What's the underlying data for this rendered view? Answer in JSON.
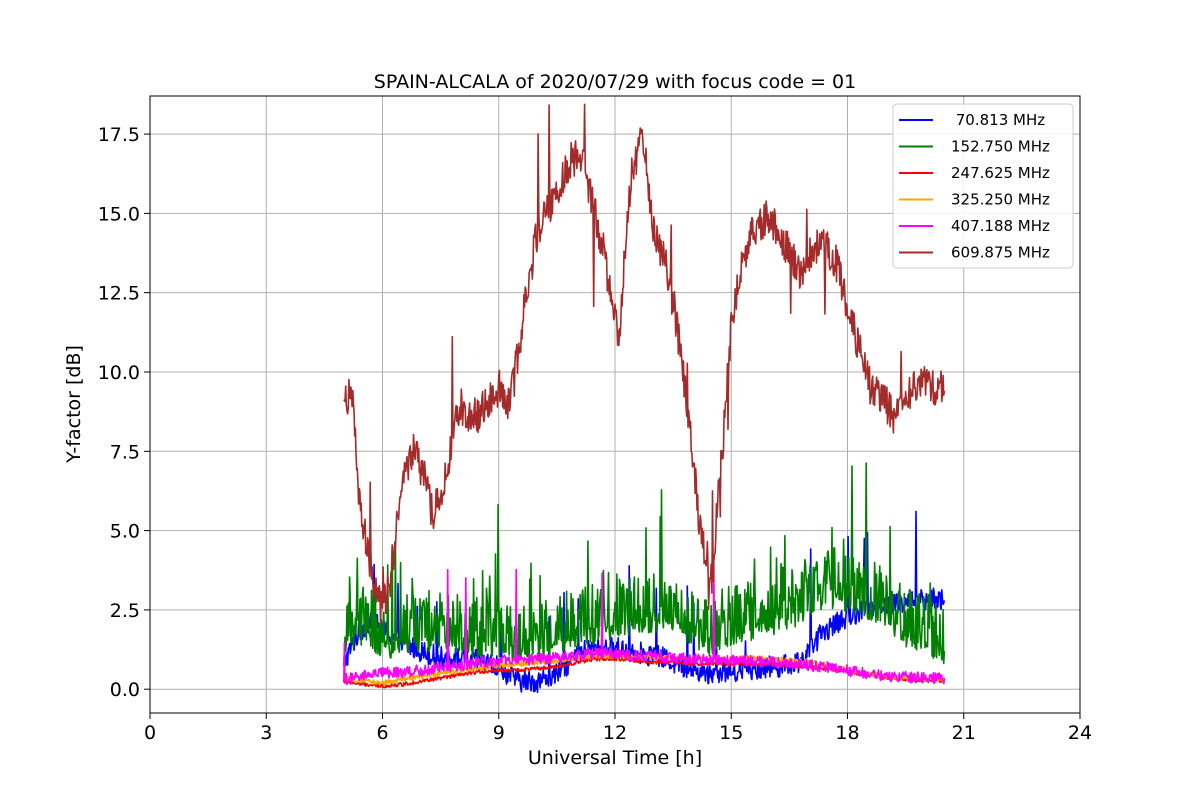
{
  "chart_data": {
    "type": "line",
    "title": "SPAIN-ALCALA of 2020/07/29 with focus code = 01",
    "xlabel": "Universal Time [h]",
    "ylabel": "Y-factor [dB]",
    "xlim": [
      0,
      24
    ],
    "ylim": [
      -0.75,
      18.7
    ],
    "xticks": [
      0,
      3,
      6,
      9,
      12,
      15,
      18,
      21,
      24
    ],
    "xtick_labels": [
      "0",
      "3",
      "6",
      "9",
      "12",
      "15",
      "18",
      "21",
      "24"
    ],
    "yticks": [
      0,
      2.5,
      5,
      7.5,
      10,
      12.5,
      15,
      17.5
    ],
    "ytick_labels": [
      "0.0",
      "2.5",
      "5.0",
      "7.5",
      "10.0",
      "12.5",
      "15.0",
      "17.5"
    ],
    "grid": true,
    "legend_position": "top-right",
    "series": [
      {
        "name": " 70.813 MHz",
        "color": "#0000ff",
        "x": [
          5.0,
          5.3,
          5.6,
          5.9,
          6.2,
          6.6,
          7.0,
          7.5,
          8.0,
          8.5,
          9.0,
          9.3,
          9.6,
          10.0,
          10.4,
          10.8,
          11.2,
          11.6,
          12.0,
          12.4,
          12.8,
          13.2,
          13.6,
          14.0,
          14.4,
          14.8,
          15.2,
          15.6,
          16.0,
          16.4,
          16.8,
          17.0,
          17.3,
          17.6,
          18.0,
          18.4,
          18.8,
          19.2,
          19.6,
          20.0,
          20.3,
          20.5
        ],
        "y": [
          0.8,
          1.6,
          2.1,
          2.0,
          1.7,
          1.4,
          1.2,
          1.0,
          0.95,
          0.9,
          0.7,
          0.4,
          0.25,
          0.25,
          0.4,
          0.8,
          1.2,
          1.3,
          1.3,
          1.25,
          1.1,
          1.0,
          0.8,
          0.6,
          0.5,
          0.55,
          0.6,
          0.65,
          0.7,
          0.75,
          0.9,
          1.2,
          1.7,
          2.0,
          2.3,
          2.5,
          2.6,
          2.7,
          2.8,
          2.8,
          2.9,
          2.8
        ]
      },
      {
        "name": "152.750 MHz",
        "color": "#008000",
        "x": [
          5.0,
          5.3,
          5.6,
          5.9,
          6.2,
          6.6,
          7.0,
          7.5,
          8.0,
          8.5,
          9.0,
          9.3,
          9.6,
          10.0,
          10.4,
          10.8,
          11.2,
          11.6,
          12.0,
          12.4,
          12.8,
          13.2,
          13.6,
          14.0,
          14.4,
          14.8,
          15.2,
          15.6,
          16.0,
          16.4,
          16.8,
          17.0,
          17.3,
          17.6,
          18.0,
          18.4,
          18.8,
          19.2,
          19.6,
          20.0,
          20.3,
          20.5
        ],
        "y": [
          1.2,
          1.8,
          2.0,
          1.6,
          1.5,
          1.6,
          1.7,
          1.8,
          1.6,
          1.5,
          1.6,
          1.4,
          1.3,
          1.4,
          1.6,
          1.8,
          1.9,
          2.0,
          2.1,
          2.2,
          2.3,
          2.4,
          2.2,
          1.9,
          1.6,
          1.8,
          2.0,
          2.1,
          2.2,
          2.4,
          2.6,
          2.8,
          3.0,
          3.1,
          3.0,
          2.8,
          2.6,
          2.2,
          1.8,
          1.5,
          1.3,
          1.2
        ]
      },
      {
        "name": "247.625 MHz",
        "color": "#ff0000",
        "x": [
          5.0,
          5.5,
          6.0,
          6.5,
          7.0,
          7.5,
          8.0,
          8.5,
          9.0,
          9.5,
          10.0,
          10.5,
          11.0,
          11.5,
          12.0,
          12.5,
          13.0,
          13.5,
          14.0,
          14.5,
          15.0,
          15.5,
          16.0,
          16.5,
          17.0,
          17.5,
          18.0,
          18.5,
          19.0,
          19.5,
          20.0,
          20.5
        ],
        "y": [
          0.25,
          0.15,
          0.1,
          0.15,
          0.25,
          0.35,
          0.45,
          0.55,
          0.6,
          0.6,
          0.65,
          0.7,
          0.85,
          0.95,
          0.95,
          0.9,
          0.85,
          0.85,
          0.8,
          0.8,
          0.8,
          0.8,
          0.8,
          0.75,
          0.7,
          0.65,
          0.55,
          0.45,
          0.38,
          0.32,
          0.28,
          0.25
        ]
      },
      {
        "name": "325.250 MHz",
        "color": "#ffa500",
        "x": [
          5.0,
          5.5,
          6.0,
          6.5,
          7.0,
          7.5,
          8.0,
          8.5,
          9.0,
          9.5,
          10.0,
          10.5,
          11.0,
          11.5,
          12.0,
          12.5,
          13.0,
          13.5,
          14.0,
          14.5,
          15.0,
          15.5,
          16.0,
          16.5,
          17.0,
          17.5,
          18.0,
          18.5,
          19.0,
          19.5,
          20.0,
          20.5
        ],
        "y": [
          0.35,
          0.25,
          0.2,
          0.3,
          0.4,
          0.5,
          0.6,
          0.65,
          0.75,
          0.8,
          0.85,
          0.9,
          1.0,
          1.05,
          1.05,
          1.0,
          1.0,
          1.0,
          0.95,
          0.95,
          0.95,
          1.0,
          0.95,
          0.9,
          0.85,
          0.75,
          0.6,
          0.5,
          0.4,
          0.35,
          0.32,
          0.3
        ]
      },
      {
        "name": "407.188 MHz",
        "color": "#ff00ff",
        "x": [
          5.0,
          5.5,
          6.0,
          6.5,
          7.0,
          7.5,
          8.0,
          8.5,
          9.0,
          9.5,
          10.0,
          10.5,
          11.0,
          11.5,
          12.0,
          12.5,
          13.0,
          13.5,
          14.0,
          14.5,
          15.0,
          15.5,
          16.0,
          16.5,
          17.0,
          17.5,
          18.0,
          18.5,
          19.0,
          19.5,
          20.0,
          20.5
        ],
        "y": [
          0.3,
          0.4,
          0.5,
          0.55,
          0.6,
          0.7,
          0.75,
          0.85,
          0.9,
          0.9,
          0.95,
          1.0,
          1.1,
          1.15,
          1.1,
          1.05,
          1.05,
          1.0,
          0.95,
          0.9,
          0.9,
          0.9,
          0.85,
          0.8,
          0.75,
          0.7,
          0.6,
          0.5,
          0.42,
          0.38,
          0.35,
          0.35
        ]
      },
      {
        "name": "609.875 MHz",
        "color": "#a52a2a",
        "x": [
          5.0,
          5.2,
          5.4,
          5.6,
          5.8,
          6.0,
          6.2,
          6.5,
          6.8,
          7.0,
          7.3,
          7.6,
          8.0,
          8.3,
          8.6,
          9.0,
          9.3,
          9.6,
          10.0,
          10.3,
          10.6,
          10.9,
          11.2,
          11.5,
          11.8,
          12.1,
          12.4,
          12.7,
          13.0,
          13.3,
          13.6,
          13.9,
          14.2,
          14.5,
          14.8,
          15.0,
          15.3,
          15.6,
          15.9,
          16.2,
          16.5,
          16.8,
          17.1,
          17.4,
          17.7,
          18.0,
          18.3,
          18.6,
          18.9,
          19.2,
          19.5,
          19.8,
          20.1,
          20.5
        ],
        "y": [
          9.0,
          9.5,
          5.8,
          4.5,
          3.2,
          2.5,
          3.5,
          6.5,
          7.5,
          7.0,
          5.5,
          6.5,
          9.0,
          8.5,
          8.8,
          9.5,
          9.0,
          11.5,
          14.5,
          15.2,
          16.0,
          16.8,
          16.5,
          15.0,
          13.0,
          11.0,
          16.0,
          17.5,
          14.5,
          13.5,
          11.5,
          8.5,
          5.0,
          3.5,
          8.0,
          11.5,
          13.5,
          14.5,
          14.8,
          14.5,
          13.8,
          13.0,
          13.8,
          14.1,
          13.5,
          12.0,
          10.8,
          9.5,
          9.2,
          8.5,
          9.2,
          9.6,
          9.6,
          9.4
        ]
      }
    ]
  }
}
